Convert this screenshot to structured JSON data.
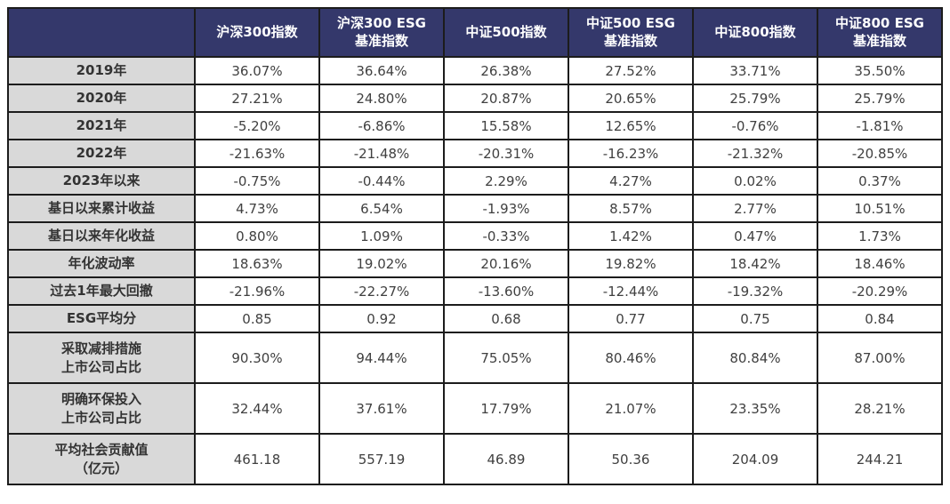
{
  "colors": {
    "header_bg": "#34386B",
    "header_text": "#FFFFFF",
    "label_bg": "#D9D9D9",
    "border": "#1C1C1C",
    "cell_text": "#404040"
  },
  "chart_data": {
    "type": "table",
    "corner_label": "",
    "columns": [
      "沪深300指数",
      "沪深300 ESG\n基准指数",
      "中证500指数",
      "中证500 ESG\n基准指数",
      "中证800指数",
      "中证800 ESG\n基准指数"
    ],
    "rows": [
      {
        "label": "2019年",
        "values": [
          "36.07%",
          "36.64%",
          "26.38%",
          "27.52%",
          "33.71%",
          "35.50%"
        ]
      },
      {
        "label": "2020年",
        "values": [
          "27.21%",
          "24.80%",
          "20.87%",
          "20.65%",
          "25.79%",
          "25.79%"
        ]
      },
      {
        "label": "2021年",
        "values": [
          "-5.20%",
          "-6.86%",
          "15.58%",
          "12.65%",
          "-0.76%",
          "-1.81%"
        ]
      },
      {
        "label": "2022年",
        "values": [
          "-21.63%",
          "-21.48%",
          "-20.31%",
          "-16.23%",
          "-21.32%",
          "-20.85%"
        ]
      },
      {
        "label": "2023年以来",
        "values": [
          "-0.75%",
          "-0.44%",
          "2.29%",
          "4.27%",
          "0.02%",
          "0.37%"
        ]
      },
      {
        "label": "基日以来累计收益",
        "values": [
          "4.73%",
          "6.54%",
          "-1.93%",
          "8.57%",
          "2.77%",
          "10.51%"
        ]
      },
      {
        "label": "基日以来年化收益",
        "values": [
          "0.80%",
          "1.09%",
          "-0.33%",
          "1.42%",
          "0.47%",
          "1.73%"
        ]
      },
      {
        "label": "年化波动率",
        "values": [
          "18.63%",
          "19.02%",
          "20.16%",
          "19.82%",
          "18.42%",
          "18.46%"
        ]
      },
      {
        "label": "过去1年最大回撤",
        "values": [
          "-21.96%",
          "-22.27%",
          "-13.60%",
          "-12.44%",
          "-19.32%",
          "-20.29%"
        ]
      },
      {
        "label": "ESG平均分",
        "values": [
          "0.85",
          "0.92",
          "0.68",
          "0.77",
          "0.75",
          "0.84"
        ]
      },
      {
        "label": "采取减排措施\n上市公司占比",
        "values": [
          "90.30%",
          "94.44%",
          "75.05%",
          "80.46%",
          "80.84%",
          "87.00%"
        ]
      },
      {
        "label": "明确环保投入\n上市公司占比",
        "values": [
          "32.44%",
          "37.61%",
          "17.79%",
          "21.07%",
          "23.35%",
          "28.21%"
        ]
      },
      {
        "label": "平均社会贡献值\n（亿元）",
        "values": [
          "461.18",
          "557.19",
          "46.89",
          "50.36",
          "204.09",
          "244.21"
        ]
      }
    ]
  }
}
